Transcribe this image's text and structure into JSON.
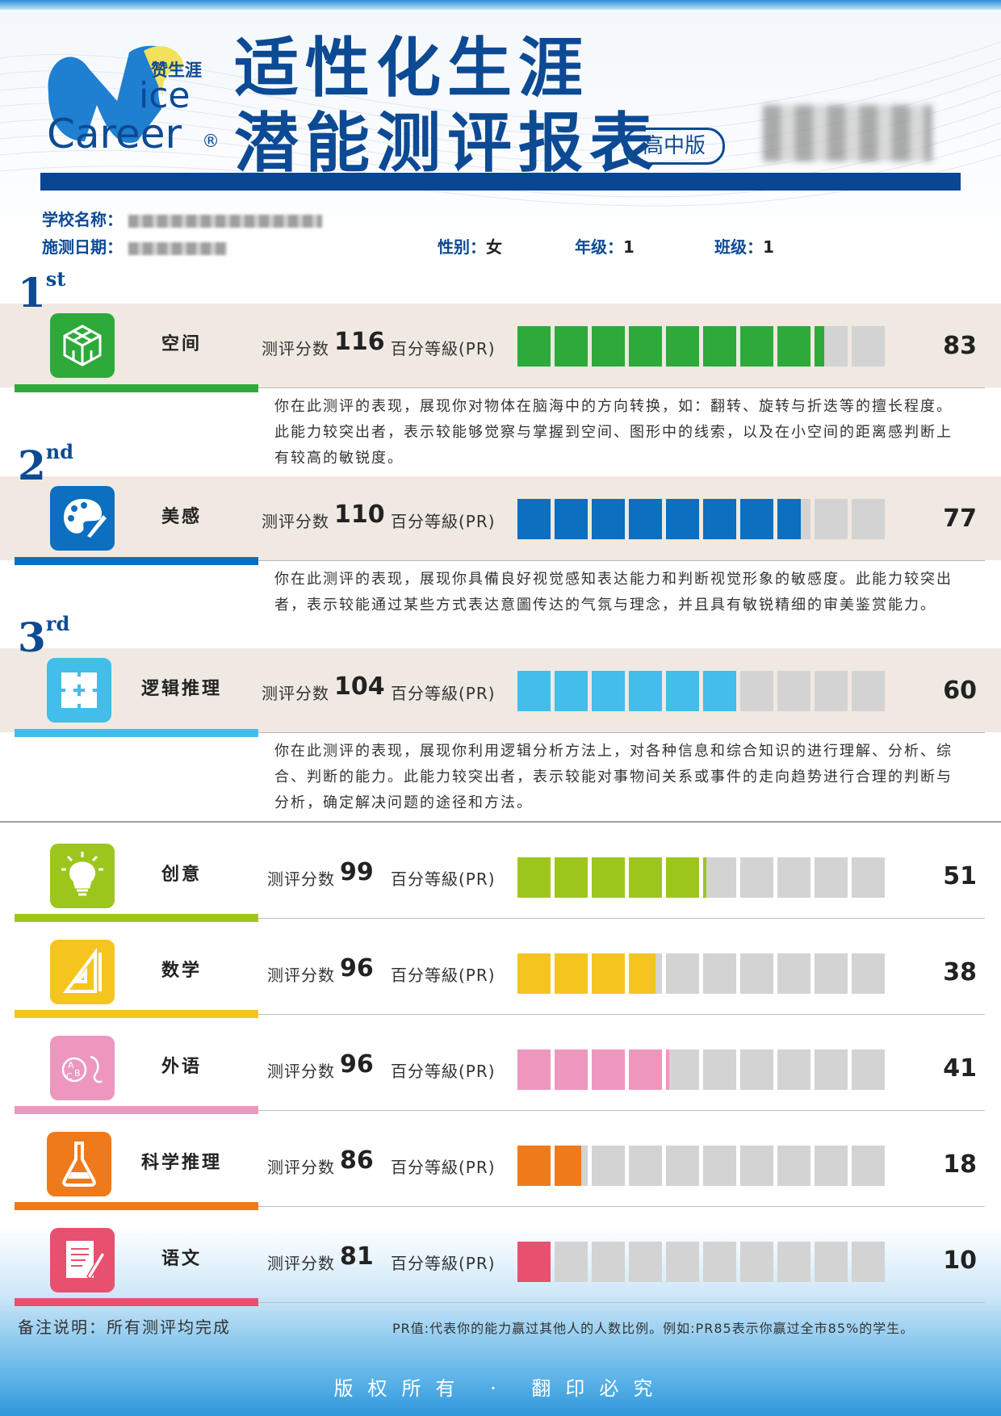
{
  "header": {
    "logo_cn": "赞生涯",
    "logo_en_1": "ice",
    "logo_en_2": "Career",
    "logo_mark": "®",
    "title_line1": "适性化生涯",
    "title_line2": "潜能测评报表",
    "edition": "高中版"
  },
  "info": {
    "school_label": "学校名称：",
    "date_label": "施测日期：",
    "gender_label": "性别：",
    "gender_value": "女",
    "grade_label": "年级：",
    "grade_value": "1",
    "class_label": "班级：",
    "class_value": "1"
  },
  "labels": {
    "score_label": "测评分数",
    "pr_label": "百分等級(PR)"
  },
  "ranks": [
    {
      "num": "1",
      "suffix": "st"
    },
    {
      "num": "2",
      "suffix": "nd"
    },
    {
      "num": "3",
      "suffix": "rd"
    }
  ],
  "abilities": [
    {
      "name": "空间",
      "score": "116",
      "pr": "83",
      "color": "#2eaa3a",
      "icon": "cube-icon",
      "desc": "你在此测评的表现，展现你对物体在脑海中的方向转换，如：翻转、旋转与折迭等的擅长程度。此能力较突出者，表示较能够觉察与掌握到空间、图形中的线索，以及在小空间的距离感判断上有较高的敏锐度。"
    },
    {
      "name": "美感",
      "score": "110",
      "pr": "77",
      "color": "#0c6fc0",
      "icon": "palette-icon",
      "desc": "你在此测评的表现，展现你具備良好视觉感知表达能力和判断视觉形象的敏感度。此能力较突出者，表示较能通过某些方式表达意圖传达的气氛与理念，并且具有敏锐精细的审美鉴赏能力。"
    },
    {
      "name": "逻辑推理",
      "score": "104",
      "pr": "60",
      "color": "#43bde9",
      "icon": "puzzle-icon",
      "desc": "你在此测评的表现，展现你利用逻辑分析方法上，对各种信息和综合知识的进行理解、分析、综合、判断的能力。此能力较突出者，表示较能对事物间关系或事件的走向趋势进行合理的判断与分析，确定解决问题的途径和方法。"
    },
    {
      "name": "创意",
      "score": "99",
      "pr": "51",
      "color": "#9dc61d",
      "icon": "lightbulb-icon"
    },
    {
      "name": "数学",
      "score": "96",
      "pr": "38",
      "color": "#f5c41f",
      "icon": "ruler-triangle-icon"
    },
    {
      "name": "外语",
      "score": "96",
      "pr": "41",
      "color": "#ed97bf",
      "icon": "abc-icon"
    },
    {
      "name": "科学推理",
      "score": "86",
      "pr": "18",
      "color": "#ee7a1c",
      "icon": "flask-icon"
    },
    {
      "name": "语文",
      "score": "81",
      "pr": "10",
      "color": "#e8506f",
      "icon": "document-pen-icon"
    }
  ],
  "footer": {
    "note": "备注说明：所有测评均完成",
    "pr_note": "PR值:代表你的能力赢过其他人的人数比例。例如:PR85表示你赢过全市85%的学生。",
    "copyright": "版权所有 · 翻印必究"
  }
}
